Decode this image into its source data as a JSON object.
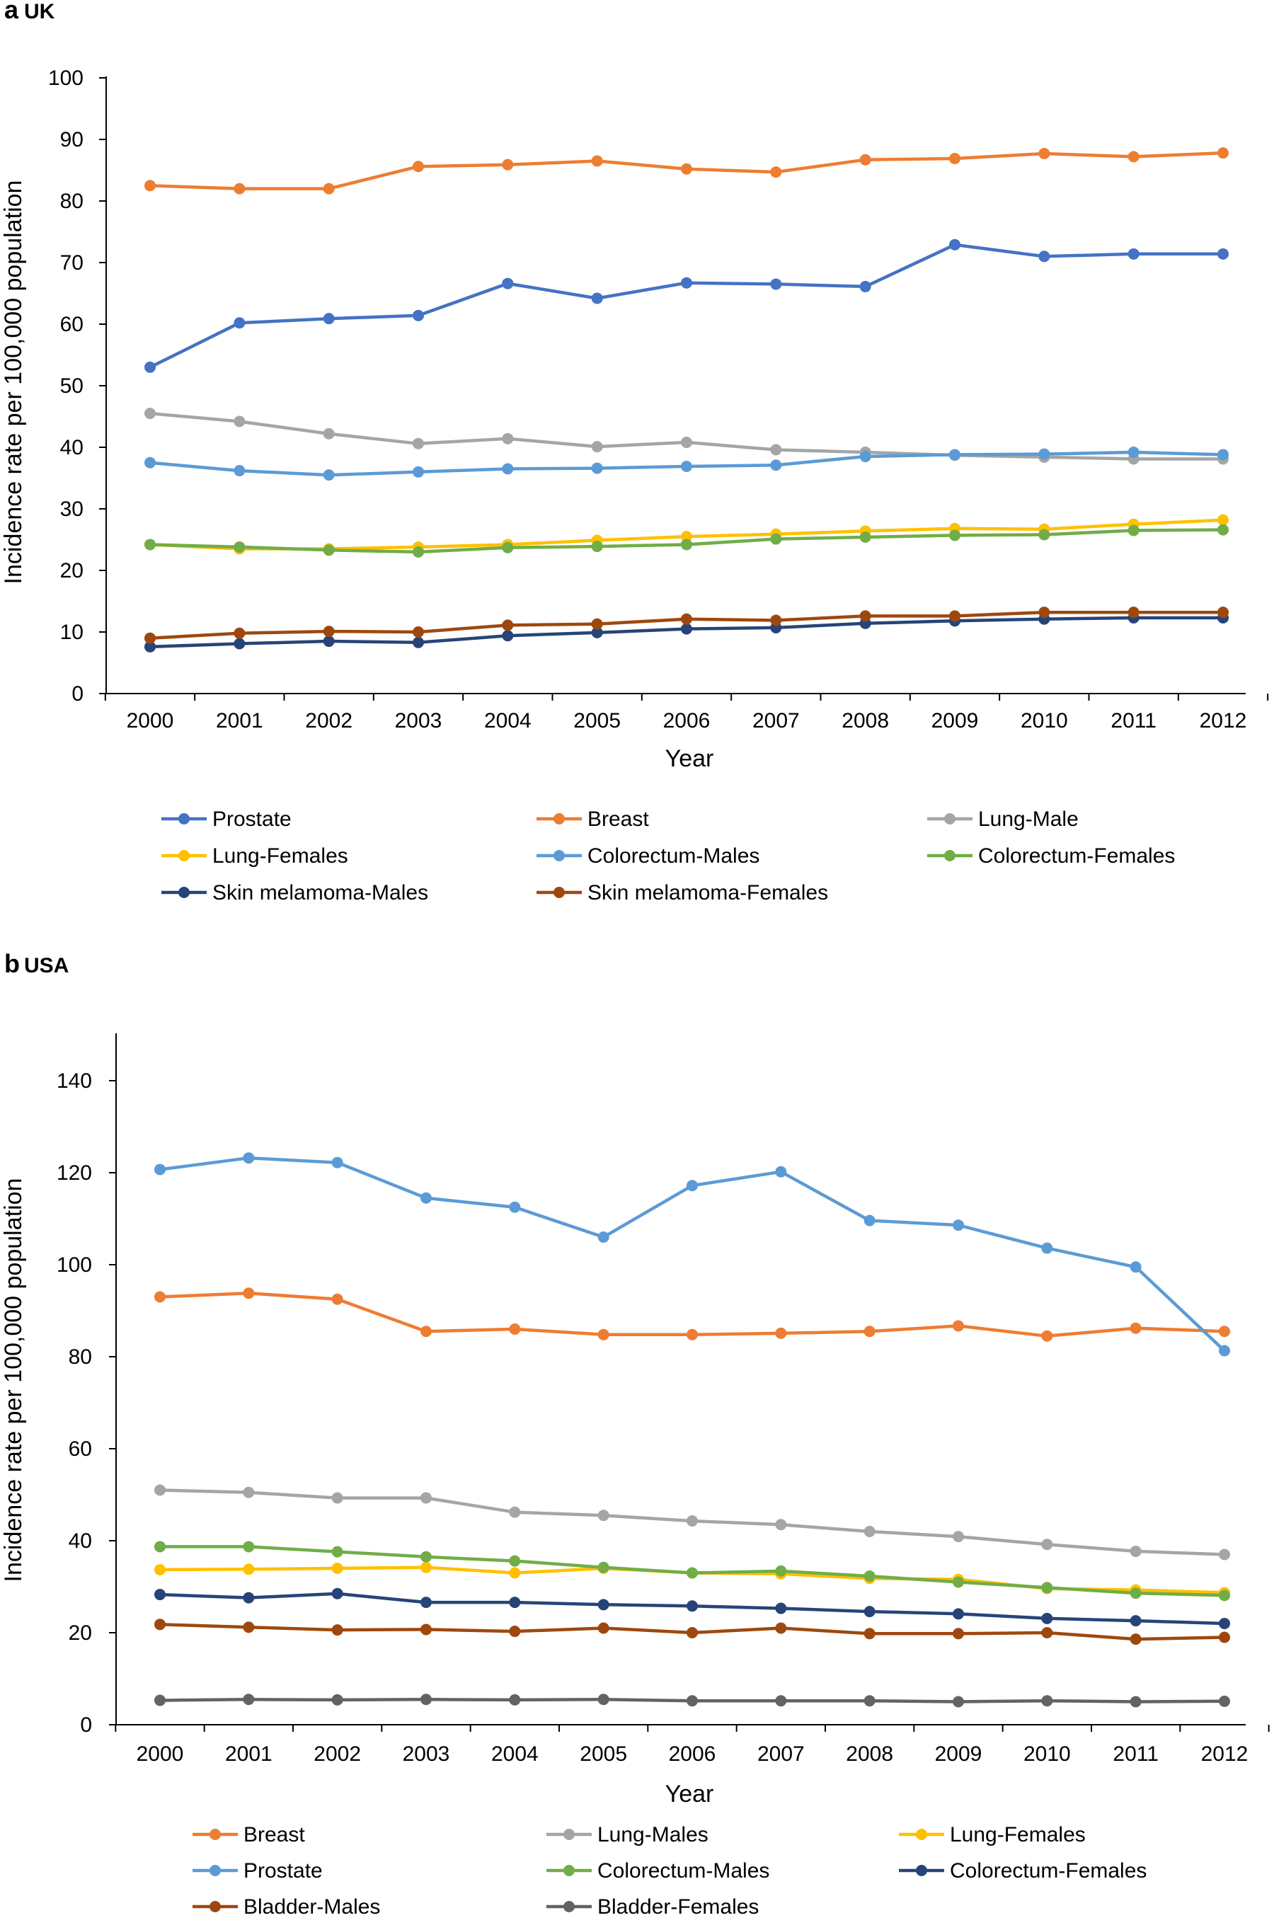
{
  "chart_data": [
    {
      "panel_letter": "a",
      "panel_title": "UK",
      "type": "line",
      "xlabel": "Year",
      "ylabel": "Incidence rate per 100,000 population",
      "ylim": [
        0,
        100
      ],
      "yticks": [
        0,
        10,
        20,
        30,
        40,
        50,
        60,
        70,
        80,
        90,
        100
      ],
      "x": [
        "2000",
        "2001",
        "2002",
        "2003",
        "2004",
        "2005",
        "2006",
        "2007",
        "2008",
        "2009",
        "2010",
        "2011",
        "2012"
      ],
      "grid": false,
      "legend_position": "bottom",
      "series": [
        {
          "name": "Prostate",
          "color": "#4472C4",
          "values": [
            53.0,
            60.2,
            60.9,
            61.4,
            66.6,
            64.2,
            66.7,
            66.5,
            66.1,
            72.9,
            71.0,
            71.4,
            71.4
          ]
        },
        {
          "name": "Breast",
          "color": "#ED7D31",
          "values": [
            82.5,
            82.0,
            82.0,
            85.6,
            85.9,
            86.5,
            85.2,
            84.7,
            86.7,
            86.9,
            87.7,
            87.2,
            87.8
          ]
        },
        {
          "name": "Lung-Male",
          "color": "#A5A5A5",
          "values": [
            45.5,
            44.2,
            42.2,
            40.6,
            41.4,
            40.1,
            40.8,
            39.6,
            39.2,
            38.7,
            38.4,
            38.1,
            38.1
          ]
        },
        {
          "name": "Lung-Females",
          "color": "#FFC000",
          "values": [
            24.2,
            23.5,
            23.5,
            23.8,
            24.2,
            24.9,
            25.5,
            25.9,
            26.4,
            26.8,
            26.7,
            27.5,
            28.2
          ]
        },
        {
          "name": "Colorectum-Males",
          "color": "#5B9BD5",
          "values": [
            37.5,
            36.2,
            35.5,
            36.0,
            36.5,
            36.6,
            36.9,
            37.1,
            38.5,
            38.8,
            38.9,
            39.2,
            38.8
          ]
        },
        {
          "name": "Colorectum-Females",
          "color": "#70AD47",
          "values": [
            24.2,
            23.8,
            23.3,
            23.0,
            23.7,
            23.9,
            24.2,
            25.1,
            25.4,
            25.7,
            25.8,
            26.5,
            26.6
          ]
        },
        {
          "name": "Skin melamoma-Males",
          "color": "#264478",
          "values": [
            7.6,
            8.1,
            8.5,
            8.3,
            9.4,
            9.9,
            10.5,
            10.7,
            11.4,
            11.8,
            12.1,
            12.3,
            12.3
          ]
        },
        {
          "name": "Skin melamoma-Females",
          "color": "#9E480E",
          "values": [
            9.0,
            9.8,
            10.1,
            10.0,
            11.1,
            11.3,
            12.1,
            11.9,
            12.6,
            12.6,
            13.2,
            13.2,
            13.2
          ]
        }
      ]
    },
    {
      "panel_letter": "b",
      "panel_title": "USA",
      "type": "line",
      "xlabel": "Year",
      "ylabel": "Incidence rate per 100,000 population",
      "ylim": [
        0,
        150
      ],
      "yticks": [
        0,
        20,
        40,
        60,
        80,
        100,
        120,
        140
      ],
      "x": [
        "2000",
        "2001",
        "2002",
        "2003",
        "2004",
        "2005",
        "2006",
        "2007",
        "2008",
        "2009",
        "2010",
        "2011",
        "2012"
      ],
      "grid": false,
      "legend_position": "bottom",
      "series": [
        {
          "name": "Breast",
          "color": "#ED7D31",
          "values": [
            93.0,
            93.8,
            92.5,
            85.5,
            86.0,
            84.8,
            84.8,
            85.1,
            85.5,
            86.7,
            84.5,
            86.2,
            85.5
          ]
        },
        {
          "name": "Lung-Males",
          "color": "#A5A5A5",
          "values": [
            51.0,
            50.5,
            49.3,
            49.3,
            46.2,
            45.5,
            44.3,
            43.5,
            42.0,
            40.9,
            39.2,
            37.7,
            37.0
          ]
        },
        {
          "name": "Lung-Females",
          "color": "#FFC000",
          "values": [
            33.7,
            33.8,
            34.0,
            34.2,
            33.0,
            34.0,
            33.0,
            32.8,
            31.8,
            31.6,
            29.6,
            29.3,
            28.7
          ]
        },
        {
          "name": "Prostate",
          "color": "#5B9BD5",
          "values": [
            120.7,
            123.2,
            122.2,
            114.5,
            112.5,
            106.0,
            117.2,
            120.2,
            109.6,
            108.6,
            103.6,
            99.5,
            81.3
          ]
        },
        {
          "name": "Colorectum-Males",
          "color": "#70AD47",
          "values": [
            38.7,
            38.7,
            37.6,
            36.5,
            35.6,
            34.2,
            33.0,
            33.4,
            32.3,
            31.0,
            29.8,
            28.6,
            28.1
          ]
        },
        {
          "name": "Colorectum-Females",
          "color": "#264478",
          "values": [
            28.3,
            27.6,
            28.5,
            26.6,
            26.6,
            26.1,
            25.8,
            25.3,
            24.6,
            24.1,
            23.1,
            22.6,
            22.0
          ]
        },
        {
          "name": "Bladder-Males",
          "color": "#9E480E",
          "values": [
            21.8,
            21.2,
            20.6,
            20.7,
            20.3,
            21.0,
            20.0,
            21.0,
            19.8,
            19.8,
            20.0,
            18.6,
            19.0
          ]
        },
        {
          "name": "Bladder-Females",
          "color": "#636363",
          "values": [
            5.3,
            5.5,
            5.4,
            5.5,
            5.4,
            5.5,
            5.2,
            5.2,
            5.2,
            5.0,
            5.2,
            5.0,
            5.1
          ]
        }
      ]
    }
  ]
}
